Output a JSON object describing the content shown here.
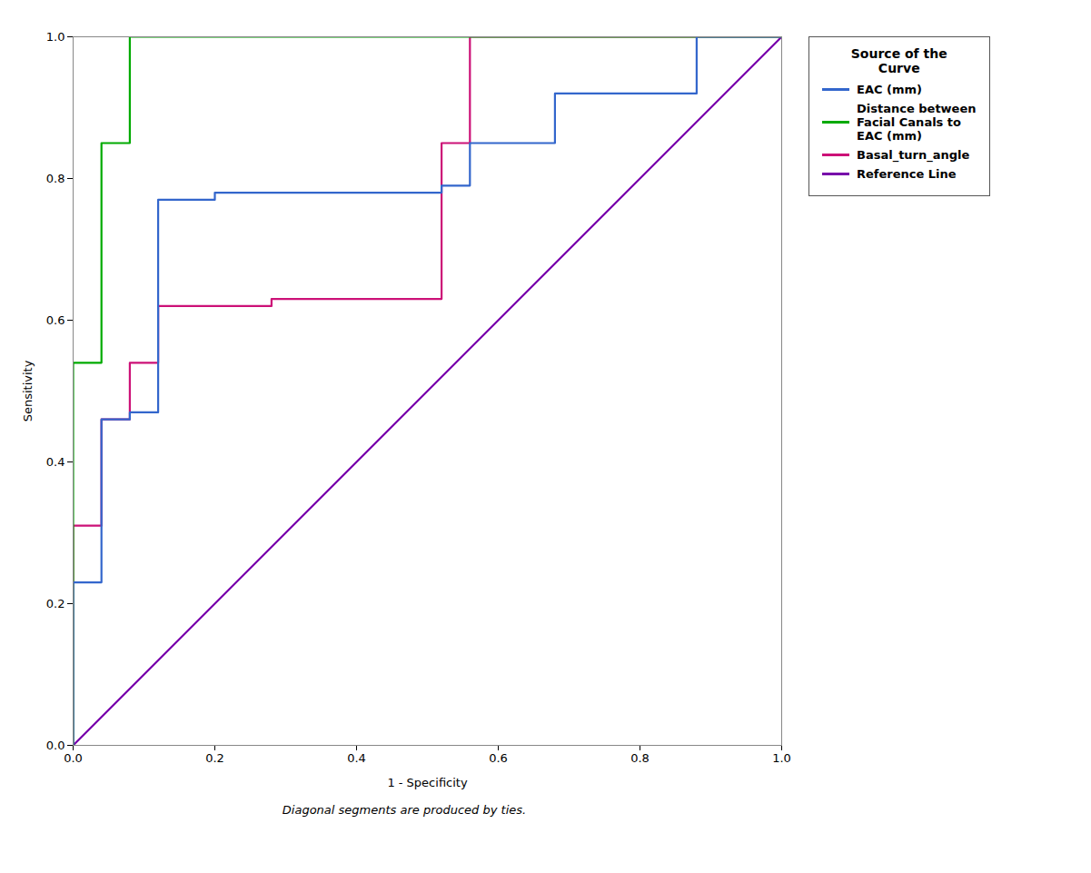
{
  "chart_data": {
    "type": "line",
    "title": "Source of the\nCurve",
    "x_label": "1 - Specificity",
    "y_label": "Sensitivity",
    "annotations": [
      "Diagonal segments are produced by ties."
    ],
    "xlim": [
      0.0,
      1.0
    ],
    "ylim": [
      0.0,
      1.0
    ],
    "xticks": [
      {
        "value": 0.0,
        "label": "0.0"
      },
      0.2,
      0.4,
      0.6,
      0.8,
      {
        "value": 1.0,
        "label": "1.0"
      }
    ],
    "yticks": [
      {
        "value": 0.0,
        "label": "0.0"
      },
      0.2,
      0.4,
      0.6,
      0.8,
      {
        "value": 1.0,
        "label": "1.0"
      }
    ],
    "grid": false,
    "legend": "right",
    "series": [
      {
        "name": "EAC (mm)",
        "color": "#3366cc",
        "x": [
          0.0,
          0.0,
          0.04,
          0.04,
          0.08,
          0.08,
          0.12,
          0.12,
          0.2,
          0.2,
          0.52,
          0.52,
          0.56,
          0.56,
          0.68,
          0.68,
          0.88,
          0.88,
          1.0
        ],
        "values": [
          0.0,
          0.23,
          0.23,
          0.46,
          0.46,
          0.47,
          0.47,
          0.77,
          0.77,
          0.78,
          0.78,
          0.79,
          0.79,
          0.85,
          0.85,
          0.92,
          0.92,
          1.0,
          1.0
        ]
      },
      {
        "name": "Distance between\nFacial Canals to\nEAC (mm)",
        "color": "#00aa00",
        "x": [
          0.0,
          0.0,
          0.04,
          0.04,
          0.08,
          0.08,
          1.0
        ],
        "values": [
          0.0,
          0.54,
          0.54,
          0.85,
          0.85,
          1.0,
          1.0
        ]
      },
      {
        "name": "Basal_turn_angle",
        "color": "#cc1177",
        "x": [
          0.0,
          0.0,
          0.04,
          0.04,
          0.08,
          0.08,
          0.12,
          0.12,
          0.28,
          0.28,
          0.52,
          0.52,
          0.56,
          0.56,
          1.0
        ],
        "values": [
          0.0,
          0.31,
          0.31,
          0.46,
          0.46,
          0.54,
          0.54,
          0.62,
          0.62,
          0.63,
          0.63,
          0.85,
          0.85,
          1.0,
          1.0
        ]
      },
      {
        "name": "Reference Line",
        "color": "#7700aa",
        "x": [
          0.0,
          1.0
        ],
        "values": [
          0.0,
          1.0
        ]
      }
    ]
  }
}
